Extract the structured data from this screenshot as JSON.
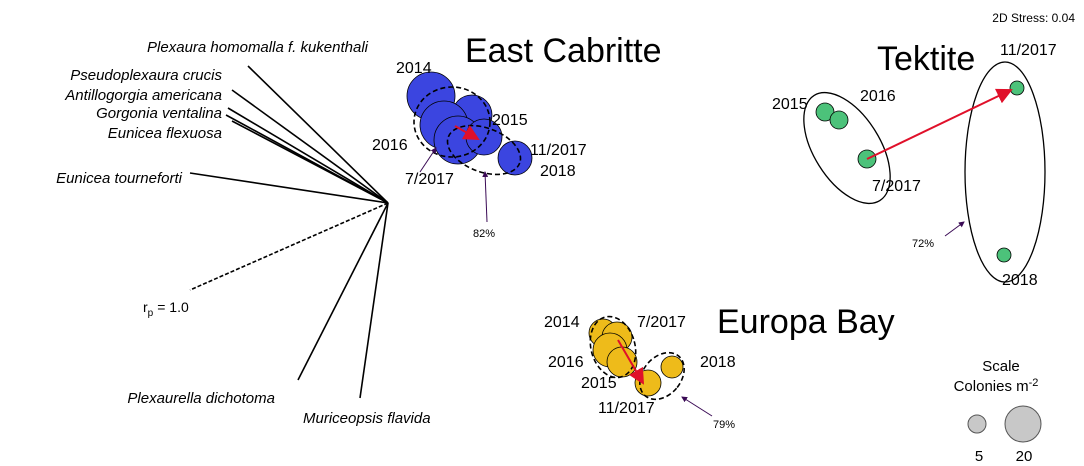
{
  "stress": "2D Stress: 0.04",
  "vectors": {
    "species": [
      "Plexaura homomalla f. kukenthali",
      "Pseudoplexaura crucis",
      "Antillogorgia americana",
      "Gorgonia ventalina",
      "Eunicea flexuosa",
      "Eunicea tourneforti",
      "Plexaurella dichotoma",
      "Muriceopsis flavida"
    ],
    "scale_symbol": "r",
    "scale_subscript": "p",
    "scale_text": "= 1.0"
  },
  "sites": [
    {
      "name": "East Cabritte",
      "labels": [
        "2014",
        "2015",
        "2016",
        "7/2017",
        "11/2017",
        "2018"
      ],
      "similarity": "82%"
    },
    {
      "name": "Tektite",
      "labels": [
        "2015",
        "2016",
        "7/2017",
        "11/2017",
        "2018"
      ],
      "similarity": "72%"
    },
    {
      "name": "Europa Bay",
      "labels": [
        "2014",
        "7/2017",
        "2016",
        "2015",
        "2018",
        "11/2017"
      ],
      "similarity": "79%"
    }
  ],
  "legend": {
    "title": "Scale",
    "unit": "Colonies m",
    "unit_power": "-2",
    "sizes": [
      "5",
      "20"
    ]
  }
}
